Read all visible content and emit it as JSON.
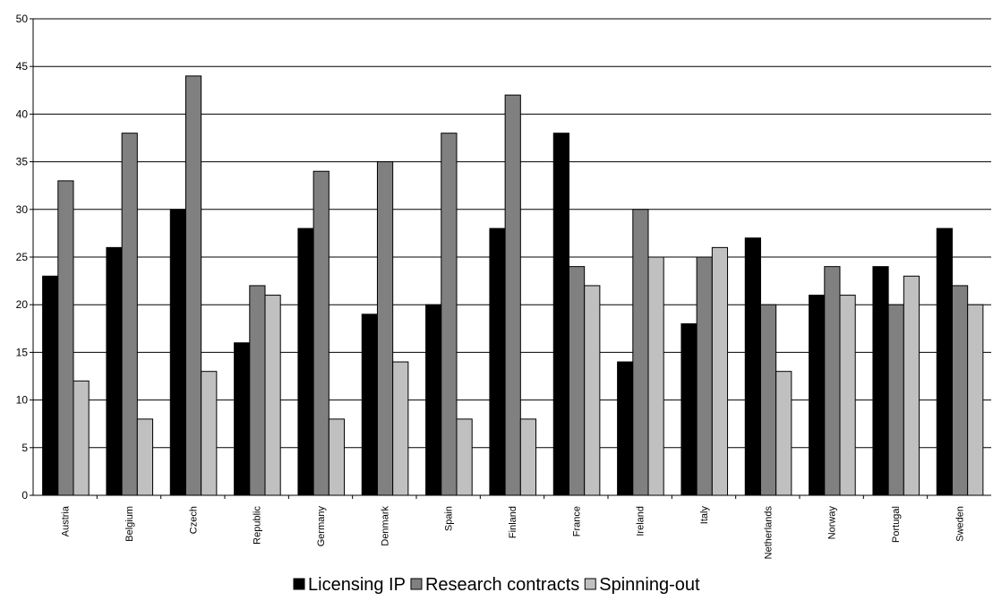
{
  "chart_data": {
    "type": "bar",
    "categories": [
      "Austria",
      "Belgium",
      "Czech",
      "Republic",
      "Germany",
      "Denmark",
      "Spain",
      "Finland",
      "France",
      "Ireland",
      "Italy",
      "Netherlands",
      "Norway",
      "Portugal",
      "Sweden"
    ],
    "series": [
      {
        "name": "Licensing IP",
        "color": "#000000",
        "values": [
          23,
          26,
          30,
          16,
          28,
          19,
          20,
          28,
          38,
          14,
          18,
          27,
          21,
          24,
          28
        ]
      },
      {
        "name": "Research contracts",
        "color": "#808080",
        "values": [
          33,
          38,
          44,
          22,
          34,
          35,
          38,
          42,
          24,
          30,
          25,
          20,
          24,
          20,
          22
        ]
      },
      {
        "name": "Spinning-out",
        "color": "#c0c0c0",
        "values": [
          12,
          8,
          13,
          21,
          8,
          14,
          8,
          8,
          22,
          25,
          26,
          13,
          21,
          23,
          20
        ]
      }
    ],
    "yticks": [
      "0",
      "5",
      "10",
      "15",
      "20",
      "25",
      "30",
      "35",
      "40",
      "45",
      "50"
    ],
    "ylim": [
      0,
      50
    ],
    "grid": true,
    "legend_position": "bottom-center"
  }
}
